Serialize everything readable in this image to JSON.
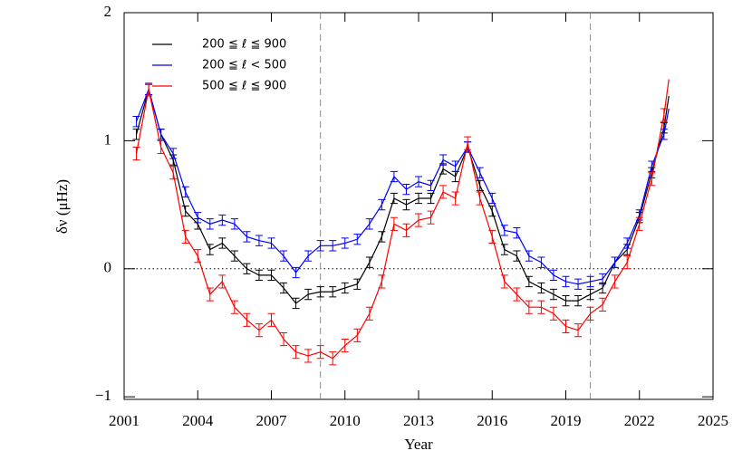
{
  "chart_data": {
    "type": "line",
    "xlabel": "Year",
    "ylabel": "δν (μHz)",
    "x": [
      2001.5,
      2002.0,
      2002.5,
      2003.0,
      2003.5,
      2004.0,
      2004.5,
      2005.0,
      2005.5,
      2006.0,
      2006.5,
      2007.0,
      2007.5,
      2008.0,
      2008.5,
      2009.0,
      2009.5,
      2010.0,
      2010.5,
      2011.0,
      2011.5,
      2012.0,
      2012.5,
      2013.0,
      2013.5,
      2014.0,
      2014.5,
      2015.0,
      2015.5,
      2016.0,
      2016.5,
      2017.0,
      2017.5,
      2018.0,
      2018.5,
      2019.0,
      2019.5,
      2020.0,
      2020.5,
      2021.0,
      2021.5,
      2022.0,
      2022.5,
      2023.0,
      2023.2
    ],
    "series": [
      {
        "name": "200 ≦ ℓ ≦ 900",
        "color": "#000000",
        "values": [
          1.05,
          1.4,
          1.05,
          0.85,
          0.45,
          0.35,
          0.15,
          0.2,
          0.1,
          0.0,
          -0.05,
          -0.05,
          -0.15,
          -0.27,
          -0.2,
          -0.18,
          -0.18,
          -0.15,
          -0.12,
          0.05,
          0.25,
          0.55,
          0.5,
          0.55,
          0.55,
          0.78,
          0.72,
          0.95,
          0.65,
          0.45,
          0.15,
          0.1,
          -0.1,
          -0.15,
          -0.2,
          -0.25,
          -0.25,
          -0.2,
          -0.15,
          0.05,
          0.15,
          0.4,
          0.75,
          1.1,
          1.35
        ],
        "errors": [
          0.04,
          0.04,
          0.04,
          0.04,
          0.04,
          0.04,
          0.04,
          0.04,
          0.04,
          0.04,
          0.04,
          0.04,
          0.04,
          0.04,
          0.04,
          0.04,
          0.04,
          0.04,
          0.04,
          0.04,
          0.04,
          0.04,
          0.04,
          0.04,
          0.04,
          0.04,
          0.04,
          0.04,
          0.04,
          0.04,
          0.04,
          0.04,
          0.04,
          0.04,
          0.04,
          0.04,
          0.04,
          0.04,
          0.04,
          0.04,
          0.04,
          0.04,
          0.04,
          0.04,
          null
        ]
      },
      {
        "name": "200 ≦ ℓ < 500",
        "color": "#0000ff",
        "values": [
          1.15,
          1.4,
          1.05,
          0.9,
          0.6,
          0.4,
          0.35,
          0.38,
          0.35,
          0.25,
          0.22,
          0.2,
          0.1,
          -0.03,
          0.1,
          0.18,
          0.18,
          0.2,
          0.23,
          0.35,
          0.5,
          0.72,
          0.62,
          0.68,
          0.65,
          0.85,
          0.8,
          0.95,
          0.75,
          0.55,
          0.3,
          0.28,
          0.1,
          0.05,
          -0.05,
          -0.1,
          -0.12,
          -0.1,
          -0.08,
          0.05,
          0.2,
          0.42,
          0.8,
          1.05,
          1.25
        ],
        "errors": [
          0.04,
          0.04,
          0.04,
          0.04,
          0.04,
          0.04,
          0.04,
          0.04,
          0.04,
          0.04,
          0.04,
          0.04,
          0.04,
          0.04,
          0.04,
          0.04,
          0.04,
          0.04,
          0.04,
          0.04,
          0.04,
          0.04,
          0.04,
          0.04,
          0.04,
          0.04,
          0.04,
          0.04,
          0.04,
          0.04,
          0.04,
          0.04,
          0.04,
          0.04,
          0.04,
          0.04,
          0.04,
          0.04,
          0.04,
          0.04,
          0.04,
          0.04,
          0.04,
          0.04,
          null
        ]
      },
      {
        "name": "500 ≦ ℓ ≦ 900",
        "color": "#ff0000",
        "values": [
          0.9,
          1.4,
          0.95,
          0.75,
          0.25,
          0.1,
          -0.2,
          -0.1,
          -0.3,
          -0.4,
          -0.48,
          -0.4,
          -0.55,
          -0.65,
          -0.68,
          -0.65,
          -0.7,
          -0.6,
          -0.52,
          -0.35,
          -0.1,
          0.35,
          0.3,
          0.38,
          0.4,
          0.6,
          0.55,
          0.98,
          0.55,
          0.25,
          -0.1,
          -0.2,
          -0.3,
          -0.3,
          -0.35,
          -0.45,
          -0.48,
          -0.35,
          -0.28,
          -0.1,
          0.05,
          0.35,
          0.7,
          1.2,
          1.48
        ],
        "errors": [
          0.05,
          0.05,
          0.05,
          0.05,
          0.05,
          0.05,
          0.05,
          0.05,
          0.05,
          0.05,
          0.05,
          0.05,
          0.05,
          0.05,
          0.05,
          0.05,
          0.05,
          0.05,
          0.05,
          0.05,
          0.05,
          0.05,
          0.05,
          0.05,
          0.05,
          0.05,
          0.05,
          0.05,
          0.05,
          0.05,
          0.05,
          0.05,
          0.05,
          0.05,
          0.05,
          0.05,
          0.05,
          0.05,
          0.05,
          0.05,
          0.05,
          0.05,
          0.05,
          0.05,
          null
        ]
      }
    ],
    "xlim": [
      2001,
      2025
    ],
    "xticks": [
      2001,
      2004,
      2007,
      2010,
      2013,
      2016,
      2019,
      2022,
      2025
    ],
    "ylim": [
      -1.02,
      2
    ],
    "yticks": [
      {
        "value": -1,
        "label": "−1"
      },
      0,
      1,
      2
    ],
    "hline": 0,
    "vlines": [
      2009,
      2020
    ],
    "legend": "upper left"
  }
}
